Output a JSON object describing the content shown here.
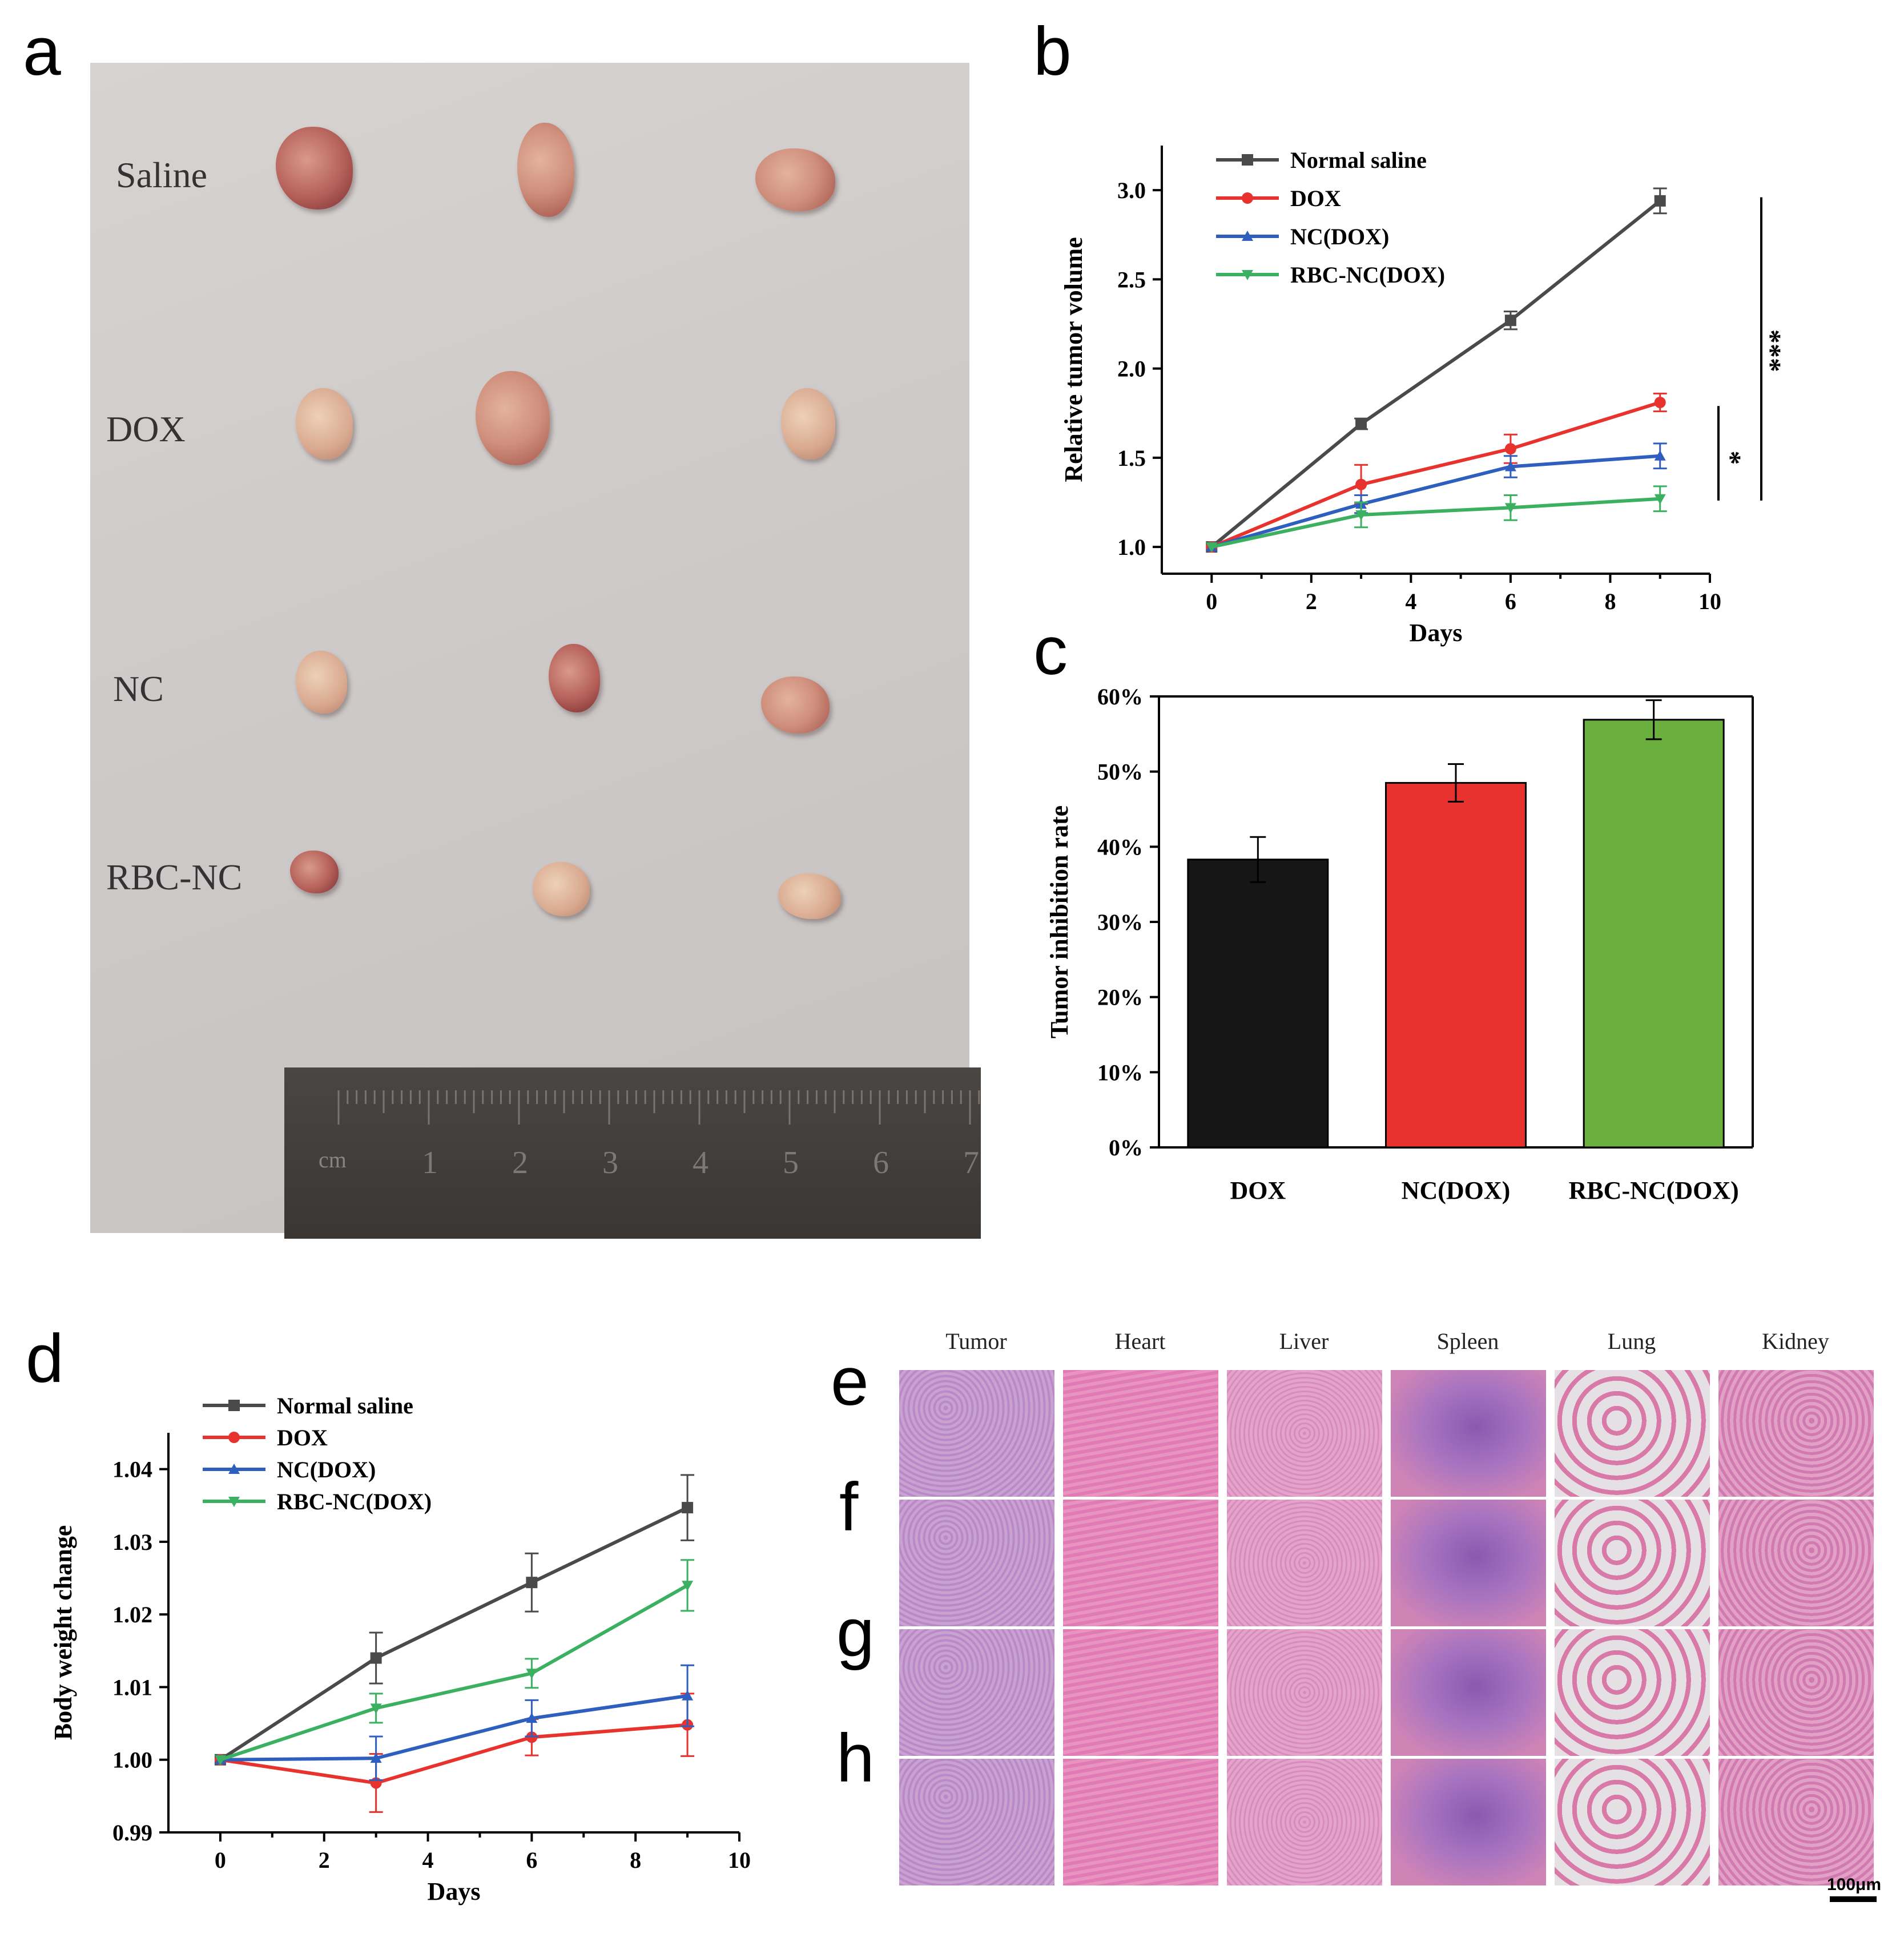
{
  "panels": {
    "a": "a",
    "b": "b",
    "c": "c",
    "d": "d",
    "e": "e",
    "f": "f",
    "g": "g",
    "h": "h"
  },
  "photo": {
    "groups": [
      "Saline",
      "DOX",
      "NC",
      "RBC-NC"
    ],
    "ruler_unit": "cm",
    "ruler_numbers": [
      "1",
      "2",
      "3",
      "4",
      "5",
      "6",
      "7"
    ]
  },
  "histology": {
    "columns": [
      "Tumor",
      "Heart",
      "Liver",
      "Spleen",
      "Lung",
      "Kidney"
    ],
    "rows": [
      "e",
      "f",
      "g",
      "h"
    ],
    "scale_bar": "100μm"
  },
  "colors": {
    "saline": "#4a4a4a",
    "dox": "#e8322e",
    "nc": "#2f5fbe",
    "rbc": "#3bb060",
    "bar_black": "#161616",
    "bar_red": "#e8322e",
    "bar_green": "#6bb03f"
  },
  "chart_data": [
    {
      "id": "b",
      "type": "line",
      "xlabel": "Days",
      "ylabel": "Relative tumor volume",
      "xlim": [
        -1,
        10
      ],
      "ylim": [
        0.85,
        3.25
      ],
      "xticks": [
        0,
        2,
        4,
        6,
        8,
        10
      ],
      "yticks": [
        1.0,
        1.5,
        2.0,
        2.5,
        3.0
      ],
      "ytick_labels": [
        "1.0",
        "1.5",
        "2.0",
        "2.5",
        "3.0"
      ],
      "x": [
        0,
        3,
        6,
        9
      ],
      "series": [
        {
          "name": "Normal saline",
          "marker": "square",
          "values": [
            1.0,
            1.69,
            2.27,
            2.94
          ],
          "err": [
            0.0,
            0.03,
            0.05,
            0.07
          ]
        },
        {
          "name": "DOX",
          "marker": "circle",
          "values": [
            1.0,
            1.35,
            1.55,
            1.81
          ],
          "err": [
            0.0,
            0.11,
            0.08,
            0.05
          ]
        },
        {
          "name": "NC(DOX)",
          "marker": "triangle",
          "values": [
            1.0,
            1.24,
            1.45,
            1.51
          ],
          "err": [
            0.0,
            0.05,
            0.06,
            0.07
          ]
        },
        {
          "name": "RBC-NC(DOX)",
          "marker": "tridown",
          "values": [
            1.0,
            1.18,
            1.22,
            1.27
          ],
          "err": [
            0.0,
            0.07,
            0.07,
            0.07
          ]
        }
      ],
      "annotations": [
        "***",
        "*"
      ]
    },
    {
      "id": "c",
      "type": "bar",
      "ylabel": "Tumor inhibition rate",
      "categories": [
        "DOX",
        "NC(DOX)",
        "RBC-NC(DOX)"
      ],
      "values": [
        38.3,
        48.5,
        56.9
      ],
      "err": [
        3.0,
        2.5,
        2.6
      ],
      "ylim": [
        0,
        60
      ],
      "yticks": [
        0,
        10,
        20,
        30,
        40,
        50,
        60
      ],
      "ytick_labels": [
        "0%",
        "10%",
        "20%",
        "30%",
        "40%",
        "50%",
        "60%"
      ]
    },
    {
      "id": "d",
      "type": "line",
      "xlabel": "Days",
      "ylabel": "Body weight change",
      "xlim": [
        -1,
        10
      ],
      "ylim": [
        0.99,
        1.045
      ],
      "xticks": [
        0,
        2,
        4,
        6,
        8,
        10
      ],
      "yticks": [
        0.99,
        1.0,
        1.01,
        1.02,
        1.03,
        1.04
      ],
      "ytick_labels": [
        "0.99",
        "1.00",
        "1.01",
        "1.02",
        "1.03",
        "1.04"
      ],
      "x": [
        0,
        3,
        6,
        9
      ],
      "series": [
        {
          "name": "Normal saline",
          "marker": "square",
          "values": [
            1.0,
            1.014,
            1.0244,
            1.0347
          ],
          "err": [
            0.0,
            0.0035,
            0.004,
            0.0045
          ]
        },
        {
          "name": "DOX",
          "marker": "circle",
          "values": [
            1.0,
            0.9968,
            1.0031,
            1.0048
          ],
          "err": [
            0.0,
            0.004,
            0.0025,
            0.0043
          ]
        },
        {
          "name": "NC(DOX)",
          "marker": "triangle",
          "values": [
            1.0,
            1.0002,
            1.0057,
            1.0088
          ],
          "err": [
            0.0,
            0.003,
            0.0025,
            0.0042
          ]
        },
        {
          "name": "RBC-NC(DOX)",
          "marker": "tridown",
          "values": [
            1.0,
            1.0071,
            1.0119,
            1.024
          ],
          "err": [
            0.0,
            0.002,
            0.002,
            0.0035
          ]
        }
      ]
    }
  ]
}
